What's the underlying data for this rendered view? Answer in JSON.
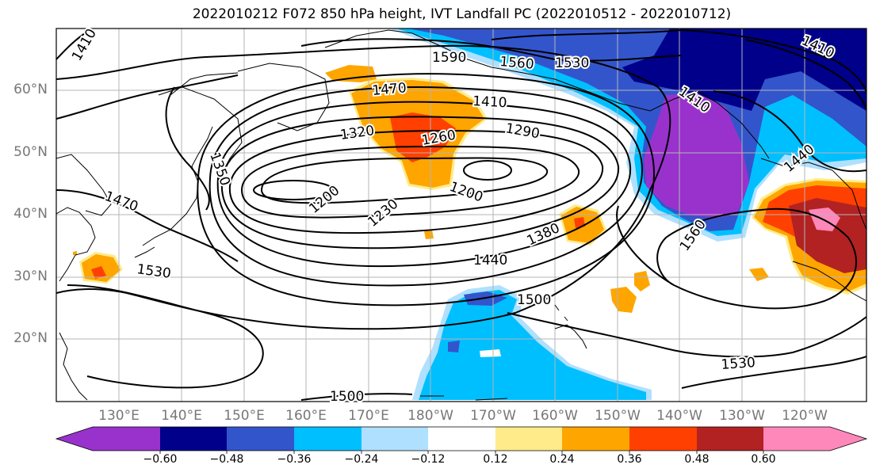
{
  "title": "2022010212 F072 850 hPa height, IVT Landfall PC (2022010512 - 2022010712)",
  "lat_labels": [
    "60°N",
    "50°N",
    "40°N",
    "30°N",
    "20°N"
  ],
  "lon_labels": [
    "130°E",
    "140°E",
    "150°E",
    "160°E",
    "170°E",
    "180°W",
    "170°W",
    "160°W",
    "150°W",
    "140°W",
    "130°W",
    "120°W"
  ],
  "contour_labels": [
    "1410",
    "1590",
    "1560",
    "1530",
    "1470",
    "1410",
    "1290",
    "1320",
    "1260",
    "1350",
    "1200",
    "1200",
    "1470",
    "1230",
    "1380",
    "1440",
    "1530",
    "1500",
    "1560",
    "1530",
    "1500",
    "1440",
    "1410",
    "1410"
  ],
  "colorbar": {
    "ticks": [
      "−0.60",
      "−0.48",
      "−0.36",
      "−0.24",
      "−0.12",
      "0.12",
      "0.24",
      "0.36",
      "0.48",
      "0.60"
    ],
    "colors": [
      "#9932cc",
      "#00008b",
      "#3355cc",
      "#00bfff",
      "#b0e0ff",
      "#ffffff",
      "#ffeb8a",
      "#ffa500",
      "#ff4000",
      "#b22222",
      "#ff88bb"
    ]
  }
}
